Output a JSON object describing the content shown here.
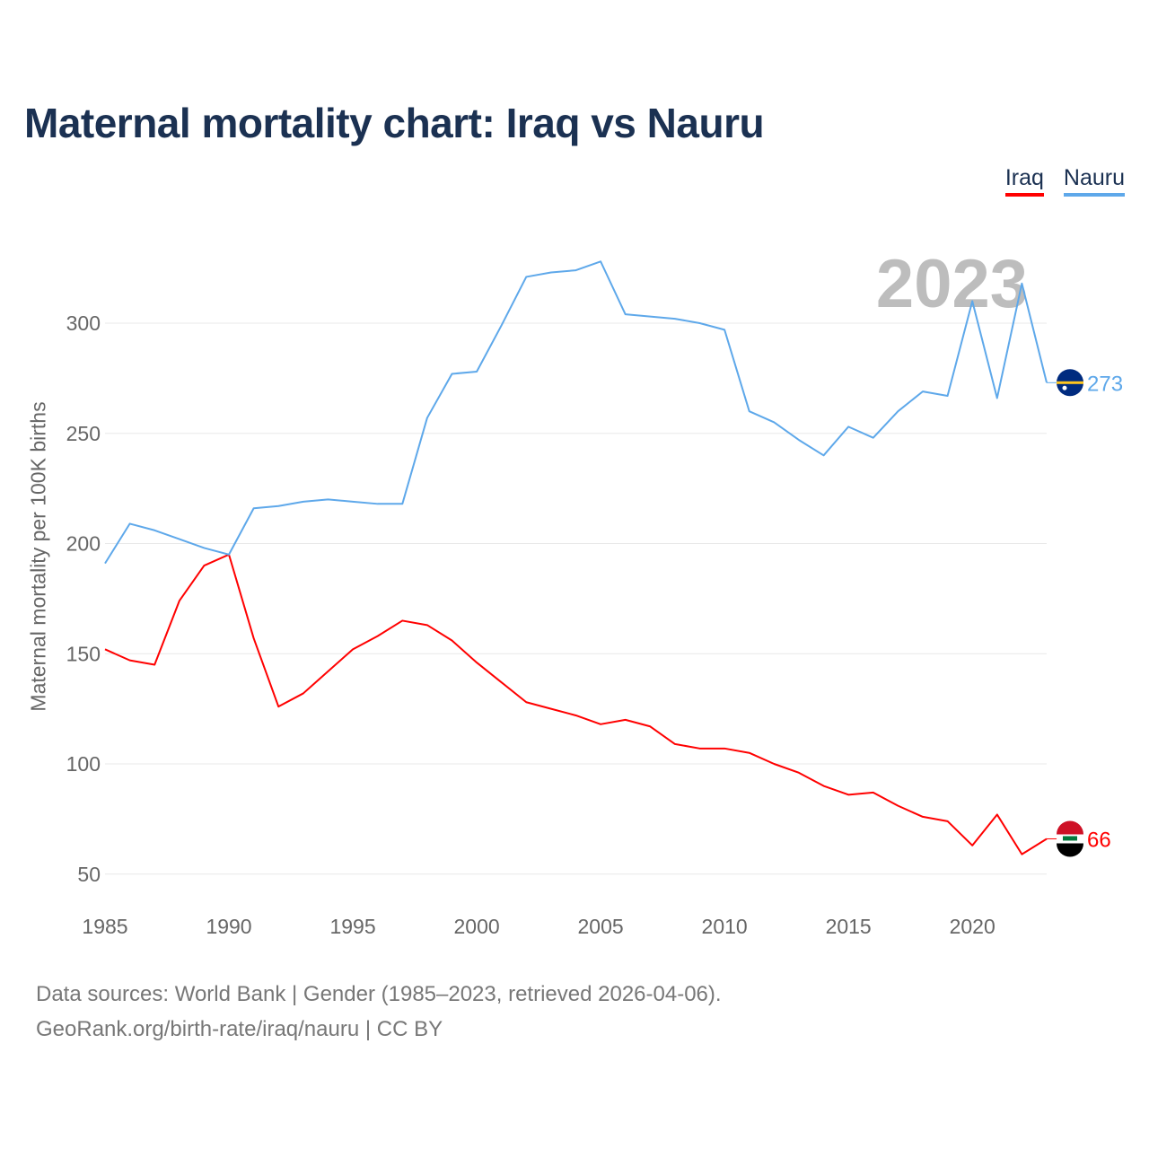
{
  "title": "Maternal mortality chart: Iraq vs Nauru",
  "source_lines": [
    "Data sources: World Bank | Gender (1985–2023, retrieved 2026-04-06).",
    "GeoRank.org/birth-rate/iraq/nauru | CC BY"
  ],
  "chart_data": {
    "type": "line",
    "title": "Maternal mortality chart: Iraq vs Nauru",
    "xlabel": "",
    "ylabel": "Maternal mortality per 100K births",
    "year_label": "2023",
    "xlim": [
      1985,
      2023
    ],
    "ylim": [
      42,
      340
    ],
    "x_ticks": [
      1985,
      1990,
      1995,
      2000,
      2005,
      2010,
      2015,
      2020
    ],
    "y_ticks": [
      50,
      100,
      150,
      200,
      250,
      300
    ],
    "grid": true,
    "legend_placement": "top-right",
    "x": [
      1985,
      1986,
      1987,
      1988,
      1989,
      1990,
      1991,
      1992,
      1993,
      1994,
      1995,
      1996,
      1997,
      1998,
      1999,
      2000,
      2001,
      2002,
      2003,
      2004,
      2005,
      2006,
      2007,
      2008,
      2009,
      2010,
      2011,
      2012,
      2013,
      2014,
      2015,
      2016,
      2017,
      2018,
      2019,
      2020,
      2021,
      2022,
      2023
    ],
    "series": [
      {
        "name": "Iraq",
        "color": "#ff0000",
        "end_label": "66",
        "values": [
          152,
          147,
          145,
          174,
          190,
          195,
          157,
          126,
          132,
          142,
          152,
          158,
          165,
          163,
          156,
          146,
          137,
          128,
          125,
          122,
          118,
          120,
          117,
          109,
          107,
          107,
          105,
          100,
          96,
          90,
          86,
          87,
          81,
          76,
          74,
          63,
          77,
          59,
          66
        ]
      },
      {
        "name": "Nauru",
        "color": "#5ea8ea",
        "end_label": "273",
        "values": [
          191,
          209,
          206,
          202,
          198,
          195,
          216,
          217,
          219,
          220,
          219,
          218,
          218,
          257,
          277,
          278,
          299,
          321,
          323,
          324,
          328,
          304,
          303,
          302,
          300,
          297,
          260,
          255,
          247,
          240,
          253,
          248,
          260,
          269,
          267,
          310,
          266,
          318,
          273
        ]
      }
    ]
  }
}
